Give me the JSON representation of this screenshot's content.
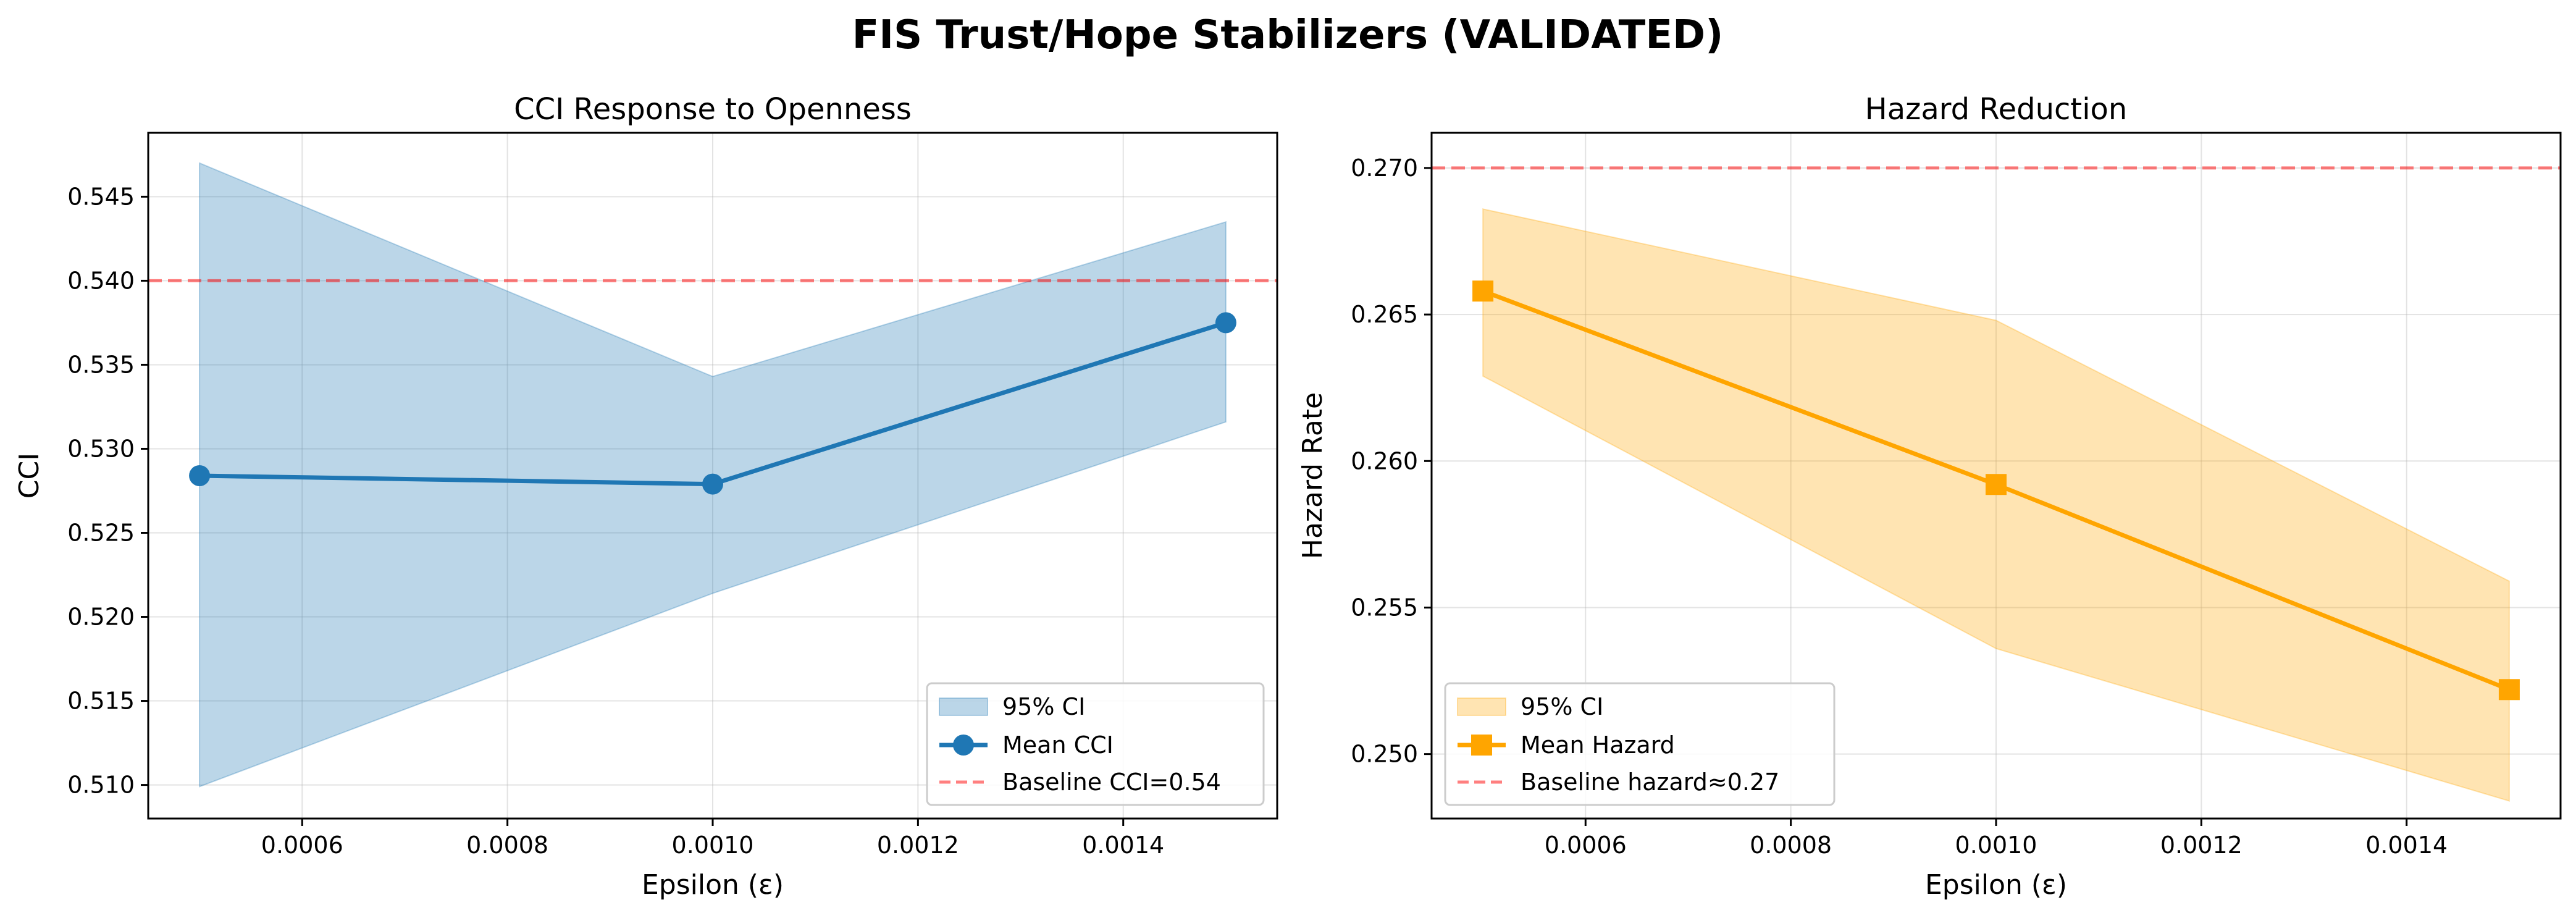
{
  "title": "FIS Trust/Hope Stabilizers (VALIDATED)",
  "colors": {
    "cci": "#1f77b4",
    "cci_band": "#1f77b4",
    "hazard": "#ffa500",
    "hazard_band": "#ffa500",
    "baseline": "#ff0000",
    "grid": "#b0b0b0"
  },
  "chart_data": [
    {
      "type": "line",
      "title": "CCI Response to Openness",
      "xlabel": "Epsilon (ε)",
      "ylabel": "CCI",
      "x": [
        0.0005,
        0.001,
        0.0015
      ],
      "series": [
        {
          "name": "Mean CCI",
          "values": [
            0.5284,
            0.5279,
            0.5375
          ],
          "marker": "circle"
        }
      ],
      "ci_band": {
        "name": "95% CI",
        "lower": [
          0.5099,
          0.5214,
          0.5316
        ],
        "upper": [
          0.547,
          0.5343,
          0.5435
        ]
      },
      "baseline": {
        "name": "Baseline CCI=0.54",
        "value": 0.54
      },
      "xlim": [
        0.00045,
        0.00155
      ],
      "ylim": [
        0.508,
        0.5488
      ],
      "xticks": [
        0.0006,
        0.0008,
        0.001,
        0.0012,
        0.0014
      ],
      "xtick_labels": [
        "0.0006",
        "0.0008",
        "0.0010",
        "0.0012",
        "0.0014"
      ],
      "yticks": [
        0.51,
        0.515,
        0.52,
        0.525,
        0.53,
        0.535,
        0.54,
        0.545
      ],
      "ytick_labels": [
        "0.510",
        "0.515",
        "0.520",
        "0.525",
        "0.530",
        "0.535",
        "0.540",
        "0.545"
      ],
      "grid": true,
      "legend": "lower-right"
    },
    {
      "type": "line",
      "title": "Hazard Reduction",
      "xlabel": "Epsilon (ε)",
      "ylabel": "Hazard Rate",
      "x": [
        0.0005,
        0.001,
        0.0015
      ],
      "series": [
        {
          "name": "Mean Hazard",
          "values": [
            0.2658,
            0.2592,
            0.2522
          ],
          "marker": "square"
        }
      ],
      "ci_band": {
        "name": "95% CI",
        "lower": [
          0.2629,
          0.2536,
          0.2484
        ],
        "upper": [
          0.2686,
          0.2648,
          0.2559
        ]
      },
      "baseline": {
        "name": "Baseline hazard≈0.27",
        "value": 0.27
      },
      "xlim": [
        0.00045,
        0.00155
      ],
      "ylim": [
        0.2478,
        0.2712
      ],
      "xticks": [
        0.0006,
        0.0008,
        0.001,
        0.0012,
        0.0014
      ],
      "xtick_labels": [
        "0.0006",
        "0.0008",
        "0.0010",
        "0.0012",
        "0.0014"
      ],
      "yticks": [
        0.25,
        0.255,
        0.26,
        0.265,
        0.27
      ],
      "ytick_labels": [
        "0.250",
        "0.255",
        "0.260",
        "0.265",
        "0.270"
      ],
      "grid": true,
      "legend": "lower-left"
    }
  ]
}
